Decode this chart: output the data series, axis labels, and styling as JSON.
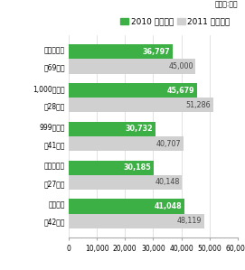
{
  "categories_line1": [
    "調　査　計",
    "1,000人以上",
    "999人以下",
    "製　造　業",
    "非製造業"
  ],
  "categories_line2": [
    "（69社）",
    "（28社）",
    "（41社）",
    "（27社）",
    "（42社）"
  ],
  "values_2010": [
    36797,
    45679,
    30732,
    30185,
    41048
  ],
  "values_2011": [
    45000,
    51286,
    40707,
    40148,
    48119
  ],
  "color_2010": "#3db045",
  "color_2011": "#d0d0d0",
  "legend_2010": "2010 年度実績",
  "legend_2011": "2011 年度予算",
  "unit_label": "（単位:円）",
  "xlim": [
    0,
    60000
  ],
  "xticks": [
    0,
    10000,
    20000,
    30000,
    40000,
    50000,
    60000
  ],
  "xtick_labels": [
    "0",
    "10,000",
    "20,000",
    "30,000",
    "40,000",
    "50,000",
    "60,000"
  ],
  "bar_height": 0.38,
  "label_fontsize": 5.5,
  "tick_fontsize": 5.5,
  "legend_fontsize": 6.5,
  "value_fontsize": 5.8,
  "background_color": "#ffffff"
}
